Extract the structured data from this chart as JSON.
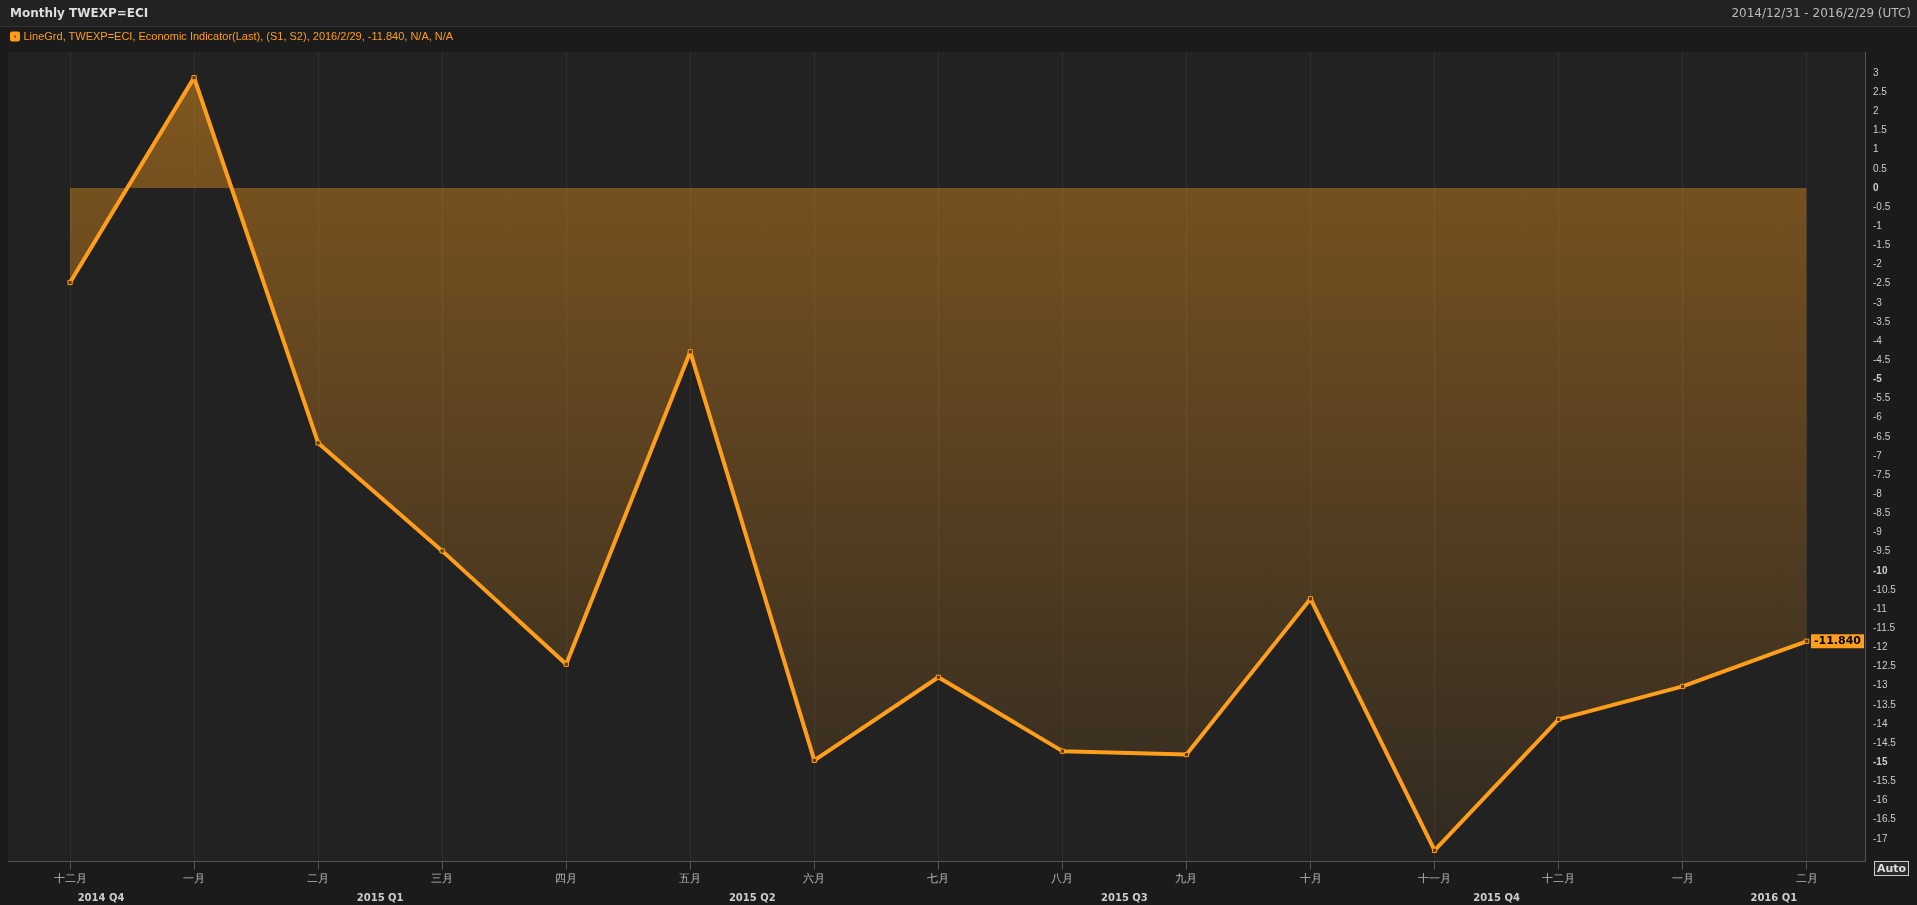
{
  "chart_data": {
    "type": "area",
    "title": "Monthly TWEXP=ECI",
    "subtitle": "2014/12/31 - 2016/2/29 (UTC)",
    "categories": [
      "十二月",
      "一月",
      "二月",
      "三月",
      "四月",
      "五月",
      "六月",
      "七月",
      "八月",
      "九月",
      "十月",
      "十一月",
      "十二月",
      "一月",
      "二月"
    ],
    "series": [
      {
        "name": "LineGrd, TWEXP=ECI, Economic Indicator(Last), (S1, S2), 2016/2/29, -11.840, N/A, N/A",
        "color": "#ff9e1b",
        "values": [
          -2.47,
          2.88,
          -6.66,
          -9.48,
          -12.44,
          -4.28,
          -14.95,
          -12.78,
          -14.71,
          -14.8,
          -10.73,
          -17.3,
          -13.88,
          -13.02,
          -11.84
        ],
        "value_labels": [
          null,
          null,
          null,
          null,
          null,
          null,
          null,
          null,
          null,
          null,
          null,
          null,
          null,
          null,
          "-11.840"
        ]
      }
    ],
    "ylim": [
      -17.6,
      3.55
    ],
    "yticks": [
      3,
      2.5,
      2,
      1.5,
      1,
      0.5,
      0,
      -0.5,
      -1,
      -1.5,
      -2,
      -2.5,
      -3,
      -3.5,
      -4,
      -4.5,
      -5,
      -5.5,
      -6,
      -6.5,
      -7,
      -7.5,
      -8,
      -8.5,
      -9,
      -9.5,
      -10,
      -10.5,
      -11,
      -11.5,
      -12,
      -12.5,
      -13,
      -13.5,
      -14,
      -14.5,
      -15,
      -15.5,
      -16,
      -16.5,
      -17
    ],
    "annotations": [
      "2014 Q4",
      "2015 Q1",
      "2015 Q2",
      "2015 Q3",
      "2015 Q4",
      "2016 Q1",
      "Auto"
    ],
    "marker": "square",
    "line_style": "solid",
    "legend": "top left",
    "grid": "x"
  }
}
